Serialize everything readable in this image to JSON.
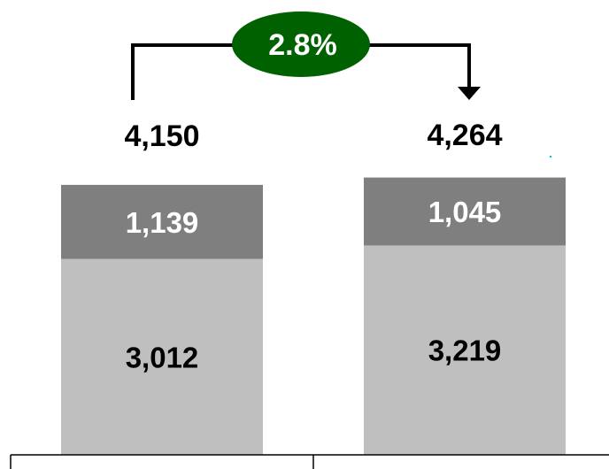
{
  "chart_data": {
    "type": "bar",
    "stacked": true,
    "categories": [
      "",
      ""
    ],
    "totals": [
      4150,
      4264
    ],
    "total_labels": [
      "4,150",
      "4,264"
    ],
    "series": [
      {
        "values": [
          3012,
          3219
        ],
        "labels": [
          "3,012",
          "3,219"
        ],
        "color": "#bfbfbf",
        "label_color": "#000000"
      },
      {
        "values": [
          1139,
          1045
        ],
        "labels": [
          "1,139",
          "1,045"
        ],
        "color": "#7f7f7f",
        "label_color": "#ffffff"
      }
    ],
    "change_label": "2.8%",
    "change_color": "#006100",
    "axis": "none",
    "grid": false,
    "legend": "none"
  }
}
